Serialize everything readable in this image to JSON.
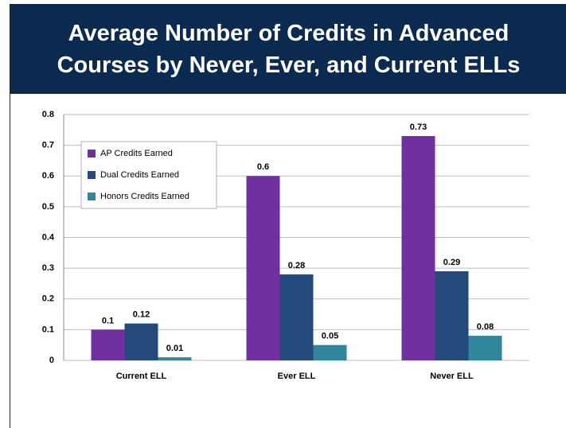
{
  "chart_data": {
    "type": "bar",
    "title": "Average Number of Credits in Advanced Courses by Never, Ever, and Current ELLs",
    "categories": [
      "Current ELL",
      "Ever ELL",
      "Never ELL"
    ],
    "series": [
      {
        "name": "AP Credits Earned",
        "color": "#7030a0",
        "values": [
          0.1,
          0.6,
          0.73
        ]
      },
      {
        "name": "Dual Credits Earned",
        "color": "#244a7c",
        "values": [
          0.12,
          0.28,
          0.29
        ]
      },
      {
        "name": "Honors Credits Earned",
        "color": "#31869b",
        "values": [
          0.01,
          0.05,
          0.08
        ]
      }
    ],
    "ylim": [
      0,
      0.8
    ],
    "yticks": [
      0,
      0.1,
      0.2,
      0.3,
      0.4,
      0.5,
      0.6,
      0.7,
      0.8
    ],
    "grid": true,
    "legend": "upper-left"
  }
}
